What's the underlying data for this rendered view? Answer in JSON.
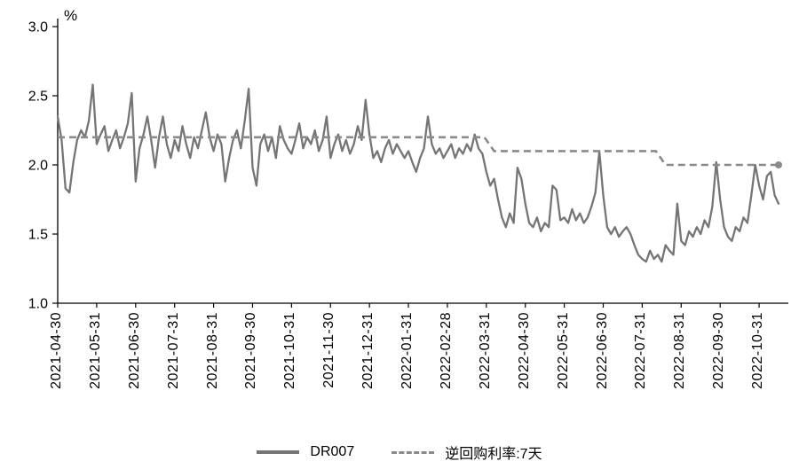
{
  "chart_data": {
    "type": "line",
    "title": "",
    "unit_label": "%",
    "ylim": [
      1.0,
      3.0
    ],
    "grid": false,
    "legend_position": "bottom",
    "yticks": [
      {
        "label": "3.0",
        "value": 3.0
      },
      {
        "label": "2.5",
        "value": 2.5
      },
      {
        "label": "2.0",
        "value": 2.0
      },
      {
        "label": "1.5",
        "value": 1.5
      },
      {
        "label": "1.0",
        "value": 1.0
      }
    ],
    "x_tick_labels": [
      "2021-04-30",
      "2021-05-31",
      "2021-06-30",
      "2021-07-31",
      "2021-08-31",
      "2021-09-30",
      "2021-10-31",
      "2021-11-30",
      "2021-12-31",
      "2022-01-31",
      "2022-02-28",
      "2022-03-31",
      "2022-04-30",
      "2022-05-31",
      "2022-06-30",
      "2022-07-31",
      "2022-08-31",
      "2022-09-30",
      "2022-10-31"
    ],
    "x_months_span": 18.75,
    "series": [
      {
        "name": "DR007",
        "style": "solid",
        "color": "#757575",
        "points_per_month": 10,
        "values": [
          2.35,
          2.18,
          1.83,
          1.8,
          2.02,
          2.18,
          2.25,
          2.2,
          2.32,
          2.58,
          2.15,
          2.22,
          2.28,
          2.1,
          2.18,
          2.25,
          2.12,
          2.2,
          2.3,
          2.52,
          1.88,
          2.12,
          2.22,
          2.35,
          2.18,
          1.98,
          2.2,
          2.35,
          2.15,
          2.05,
          2.18,
          2.1,
          2.28,
          2.15,
          2.05,
          2.2,
          2.12,
          2.25,
          2.38,
          2.2,
          2.1,
          2.22,
          2.15,
          1.88,
          2.05,
          2.18,
          2.25,
          2.12,
          2.32,
          2.55,
          1.98,
          1.85,
          2.15,
          2.22,
          2.1,
          2.2,
          2.05,
          2.28,
          2.18,
          2.12,
          2.08,
          2.18,
          2.3,
          2.12,
          2.2,
          2.15,
          2.25,
          2.1,
          2.18,
          2.35,
          2.05,
          2.15,
          2.22,
          2.1,
          2.18,
          2.08,
          2.15,
          2.28,
          2.18,
          2.47,
          2.22,
          2.05,
          2.1,
          2.02,
          2.12,
          2.18,
          2.08,
          2.15,
          2.1,
          2.05,
          2.1,
          2.02,
          1.95,
          2.05,
          2.12,
          2.35,
          2.15,
          2.08,
          2.12,
          2.05,
          2.1,
          2.15,
          2.05,
          2.12,
          2.08,
          2.15,
          2.1,
          2.22,
          2.12,
          2.08,
          1.95,
          1.85,
          1.9,
          1.75,
          1.62,
          1.55,
          1.65,
          1.58,
          1.98,
          1.9,
          1.72,
          1.58,
          1.55,
          1.62,
          1.52,
          1.58,
          1.55,
          1.85,
          1.82,
          1.6,
          1.62,
          1.58,
          1.68,
          1.6,
          1.65,
          1.58,
          1.62,
          1.7,
          1.8,
          2.1,
          1.78,
          1.55,
          1.5,
          1.55,
          1.48,
          1.52,
          1.55,
          1.5,
          1.42,
          1.35,
          1.32,
          1.3,
          1.38,
          1.32,
          1.35,
          1.3,
          1.42,
          1.38,
          1.35,
          1.72,
          1.45,
          1.42,
          1.52,
          1.48,
          1.55,
          1.5,
          1.6,
          1.55,
          1.7,
          2.02,
          1.75,
          1.55,
          1.48,
          1.45,
          1.55,
          1.52,
          1.62,
          1.58,
          1.78,
          2.0,
          1.85,
          1.75,
          1.92,
          1.95,
          1.78,
          1.72
        ]
      },
      {
        "name": "逆回购利率:7天",
        "style": "dashed",
        "color": "#8a8a8a",
        "step_points": [
          [
            0,
            2.2
          ],
          [
            10.95,
            2.2
          ],
          [
            11.2,
            2.1
          ],
          [
            15.35,
            2.1
          ],
          [
            15.6,
            2.0
          ],
          [
            18.5,
            2.0
          ]
        ],
        "end_marker": true
      }
    ]
  }
}
